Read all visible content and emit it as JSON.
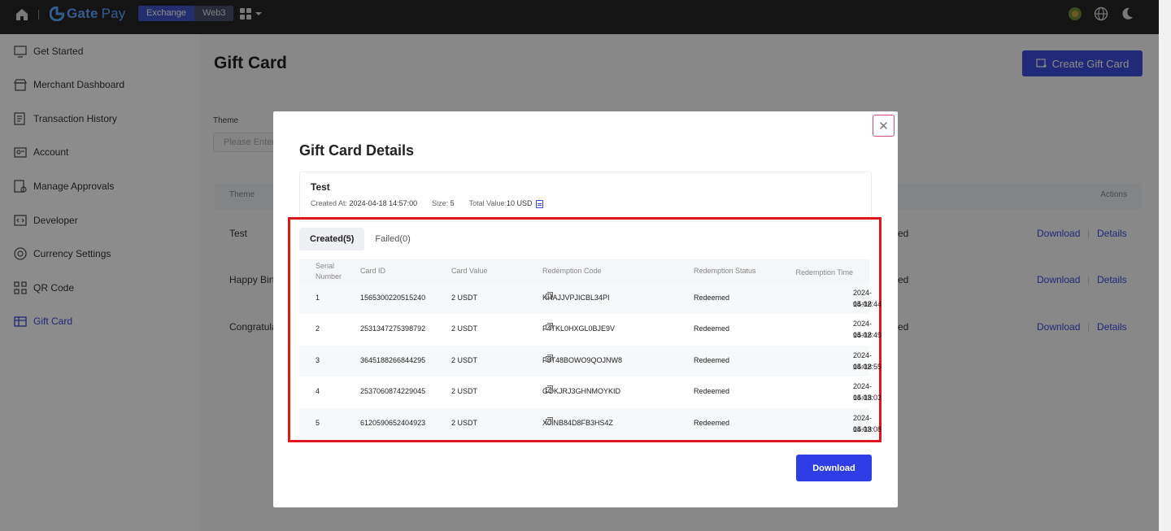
{
  "topbar": {
    "logo_gate": "Gate",
    "logo_pay": "Pay",
    "seg_exchange": "Exchange",
    "seg_web3": "Web3"
  },
  "sidebar": {
    "items": [
      {
        "label": "Get Started",
        "icon": "monitor-icon"
      },
      {
        "label": "Merchant Dashboard",
        "icon": "store-icon"
      },
      {
        "label": "Transaction History",
        "icon": "list-icon"
      },
      {
        "label": "Account",
        "icon": "id-card-icon"
      },
      {
        "label": "Manage Approvals",
        "icon": "approval-icon"
      },
      {
        "label": "Developer",
        "icon": "code-icon"
      },
      {
        "label": "Currency Settings",
        "icon": "currency-icon"
      },
      {
        "label": "QR Code",
        "icon": "qr-icon"
      },
      {
        "label": "Gift Card",
        "icon": "gift-card-icon"
      }
    ],
    "active_index": 8
  },
  "main": {
    "title": "Gift Card",
    "create_button": "Create Gift Card",
    "theme_label": "Theme",
    "theme_placeholder": "Please Enter",
    "table_head_theme": "Theme",
    "table_head_actions": "Actions",
    "rows": [
      {
        "name": "Test",
        "tail": "ed",
        "download": "Download",
        "details": "Details"
      },
      {
        "name": "Happy Birt",
        "tail": "ed",
        "download": "Download",
        "details": "Details"
      },
      {
        "name": "Congratula",
        "tail": "ed",
        "download": "Download",
        "details": "Details"
      }
    ]
  },
  "modal": {
    "title": "Gift Card Details",
    "card_name": "Test",
    "created_at_label": "Created At:",
    "created_at": "2024-04-18 14:57:00",
    "size_label": "Size:",
    "size": "5",
    "total_value_label": "Total Value:",
    "total_value": "10 USD",
    "tabs": [
      {
        "label": "Created(5)",
        "active": true
      },
      {
        "label": "Failed(0)",
        "active": false
      }
    ],
    "columns": {
      "serial_1": "Serial",
      "serial_2": "Number",
      "card_id": "Card ID",
      "card_value": "Card Value",
      "redemption_code": "Redemption Code",
      "redemption_status": "Redemption Status",
      "redemption_time": "Redemption Time"
    },
    "rows": [
      {
        "sn": "1",
        "card_id": "1565300220515240",
        "value": "2 USDT",
        "code": "KHAJJVPJICBL34PI",
        "status": "Redeemed",
        "date": "2024-04-18",
        "time": "15:02:44"
      },
      {
        "sn": "2",
        "card_id": "2531347275398792",
        "value": "2 USDT",
        "code": "F4TKL0HXGL0BJE9V",
        "status": "Redeemed",
        "date": "2024-04-18",
        "time": "15:02:49"
      },
      {
        "sn": "3",
        "card_id": "3645188266844295",
        "value": "2 USDT",
        "code": "F8T48BOWO9QOJNW8",
        "status": "Redeemed",
        "date": "2024-04-18",
        "time": "15:02:55"
      },
      {
        "sn": "4",
        "card_id": "2537060874229045",
        "value": "2 USDT",
        "code": "GOKJRJ3GHNMOYKID",
        "status": "Redeemed",
        "date": "2024-04-18",
        "time": "15:03:03"
      },
      {
        "sn": "5",
        "card_id": "6120590652404923",
        "value": "2 USDT",
        "code": "X0INB84D8FB3HS4Z",
        "status": "Redeemed",
        "date": "2024-04-18",
        "time": "15:03:08"
      }
    ],
    "download_button": "Download"
  }
}
